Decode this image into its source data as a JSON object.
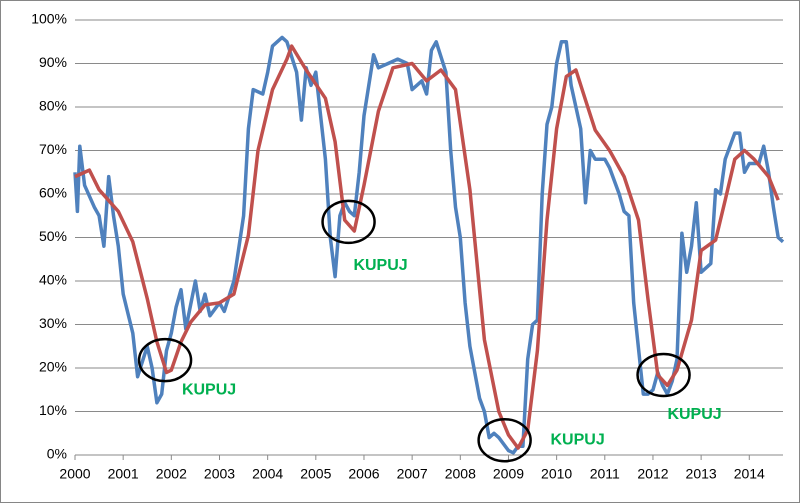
{
  "chart_data": {
    "type": "line",
    "xlim": [
      2000,
      2014.7
    ],
    "xticks": [
      2000,
      2001,
      2002,
      2003,
      2004,
      2005,
      2006,
      2007,
      2008,
      2009,
      2010,
      2011,
      2012,
      2013,
      2014
    ],
    "ylim": [
      0,
      100
    ],
    "yticks": [
      {
        "value": 0,
        "label": "0%"
      },
      {
        "value": 10,
        "label": "10%"
      },
      {
        "value": 20,
        "label": "20%"
      },
      {
        "value": 30,
        "label": "30%"
      },
      {
        "value": 40,
        "label": "40%"
      },
      {
        "value": 50,
        "label": "50%"
      },
      {
        "value": 60,
        "label": "60%"
      },
      {
        "value": 70,
        "label": "70%"
      },
      {
        "value": 80,
        "label": "80%"
      },
      {
        "value": 90,
        "label": "90%"
      },
      {
        "value": 100,
        "label": "100%"
      }
    ],
    "grid": true,
    "series": [
      {
        "color": "#4f81bd",
        "x": [
          2000.0,
          2000.05,
          2000.1,
          2000.2,
          2000.4,
          2000.5,
          2000.6,
          2000.7,
          2000.8,
          2000.9,
          2001.0,
          2001.2,
          2001.3,
          2001.5,
          2001.6,
          2001.7,
          2001.8,
          2001.9,
          2002.0,
          2002.1,
          2002.2,
          2002.3,
          2002.5,
          2002.6,
          2002.7,
          2002.8,
          2003.0,
          2003.1,
          2003.3,
          2003.5,
          2003.6,
          2003.7,
          2003.9,
          2004.0,
          2004.1,
          2004.3,
          2004.4,
          2004.6,
          2004.7,
          2004.8,
          2004.9,
          2005.0,
          2005.1,
          2005.2,
          2005.3,
          2005.4,
          2005.5,
          2005.6,
          2005.7,
          2005.8,
          2005.9,
          2006.0,
          2006.2,
          2006.3,
          2006.5,
          2006.7,
          2006.9,
          2007.0,
          2007.2,
          2007.3,
          2007.4,
          2007.5,
          2007.7,
          2007.8,
          2007.9,
          2008.0,
          2008.1,
          2008.2,
          2008.4,
          2008.5,
          2008.6,
          2008.7,
          2008.8,
          2009.0,
          2009.1,
          2009.2,
          2009.3,
          2009.4,
          2009.5,
          2009.6,
          2009.7,
          2009.8,
          2009.9,
          2010.0,
          2010.1,
          2010.2,
          2010.3,
          2010.4,
          2010.5,
          2010.6,
          2010.7,
          2010.8,
          2011.0,
          2011.1,
          2011.3,
          2011.4,
          2011.5,
          2011.6,
          2011.8,
          2011.9,
          2012.0,
          2012.1,
          2012.2,
          2012.3,
          2012.4,
          2012.5,
          2012.6,
          2012.7,
          2012.8,
          2012.9,
          2013.0,
          2013.2,
          2013.3,
          2013.4,
          2013.5,
          2013.6,
          2013.7,
          2013.8,
          2013.9,
          2014.0,
          2014.2,
          2014.3,
          2014.4,
          2014.5,
          2014.6,
          2014.7
        ],
        "values": [
          65,
          56,
          71,
          62,
          57,
          55,
          48,
          64,
          55,
          48,
          37,
          28,
          18,
          25,
          20,
          12,
          14,
          24,
          28,
          34,
          38,
          29,
          40,
          33,
          37,
          32,
          35,
          33,
          40,
          55,
          75,
          84,
          83,
          88,
          94,
          96,
          95,
          88,
          77,
          89,
          85,
          88,
          78,
          68,
          50,
          41,
          55,
          58,
          56,
          55,
          65,
          78,
          92,
          89,
          90,
          91,
          90,
          84,
          86,
          83,
          93,
          95,
          88,
          70,
          57,
          50,
          35,
          25,
          13,
          10,
          4,
          5,
          4,
          1,
          0.5,
          2,
          2,
          22,
          30,
          31,
          60,
          76,
          80,
          90,
          95,
          95,
          85,
          80,
          75,
          58,
          70,
          68,
          68,
          66,
          60,
          56,
          55,
          35,
          14,
          14,
          15,
          19,
          16,
          14,
          17,
          22,
          51,
          42,
          48,
          58,
          42,
          44,
          61,
          60,
          68,
          71,
          74,
          74,
          65,
          67,
          67,
          71,
          65,
          57,
          50,
          49
        ]
      },
      {
        "color": "#c0504d",
        "x": [
          2000.0,
          2000.3,
          2000.5,
          2000.9,
          2001.2,
          2001.5,
          2001.7,
          2001.9,
          2002.0,
          2002.2,
          2002.4,
          2002.7,
          2003.0,
          2003.3,
          2003.6,
          2003.8,
          2004.1,
          2004.4,
          2004.5,
          2004.8,
          2005.2,
          2005.4,
          2005.6,
          2005.8,
          2006.0,
          2006.3,
          2006.6,
          2007.0,
          2007.3,
          2007.6,
          2007.9,
          2008.2,
          2008.5,
          2008.8,
          2009.0,
          2009.2,
          2009.4,
          2009.6,
          2009.8,
          2010.0,
          2010.2,
          2010.4,
          2010.6,
          2010.8,
          2011.1,
          2011.4,
          2011.7,
          2011.9,
          2012.1,
          2012.3,
          2012.5,
          2012.8,
          2013.0,
          2013.3,
          2013.5,
          2013.7,
          2013.9,
          2014.1,
          2014.4,
          2014.6
        ],
        "values": [
          64,
          65.5,
          61,
          56,
          49,
          36,
          26,
          19,
          19.5,
          26,
          30.5,
          34.5,
          35,
          37,
          50.5,
          70,
          84,
          91,
          94,
          88.5,
          82,
          72,
          54,
          51.5,
          62,
          79,
          89,
          90,
          86,
          88.5,
          84,
          61,
          26.5,
          10,
          4.6,
          1.6,
          5.7,
          24,
          54,
          75,
          87,
          88.5,
          81.6,
          74.7,
          70,
          64,
          54,
          35.6,
          18.4,
          16,
          19.5,
          31,
          47,
          49.4,
          58.6,
          68,
          70,
          68,
          64,
          58.6
        ]
      }
    ],
    "annotations": [
      {
        "text": "KUPUJ",
        "x": 2001.87,
        "y": 21.8
      },
      {
        "text": "KUPUJ",
        "x": 2005.68,
        "y": 53.6
      },
      {
        "text": "KUPUJ",
        "x": 2008.92,
        "y": 3.4
      },
      {
        "text": "KUPUJ",
        "x": 2012.22,
        "y": 18.4
      }
    ]
  }
}
